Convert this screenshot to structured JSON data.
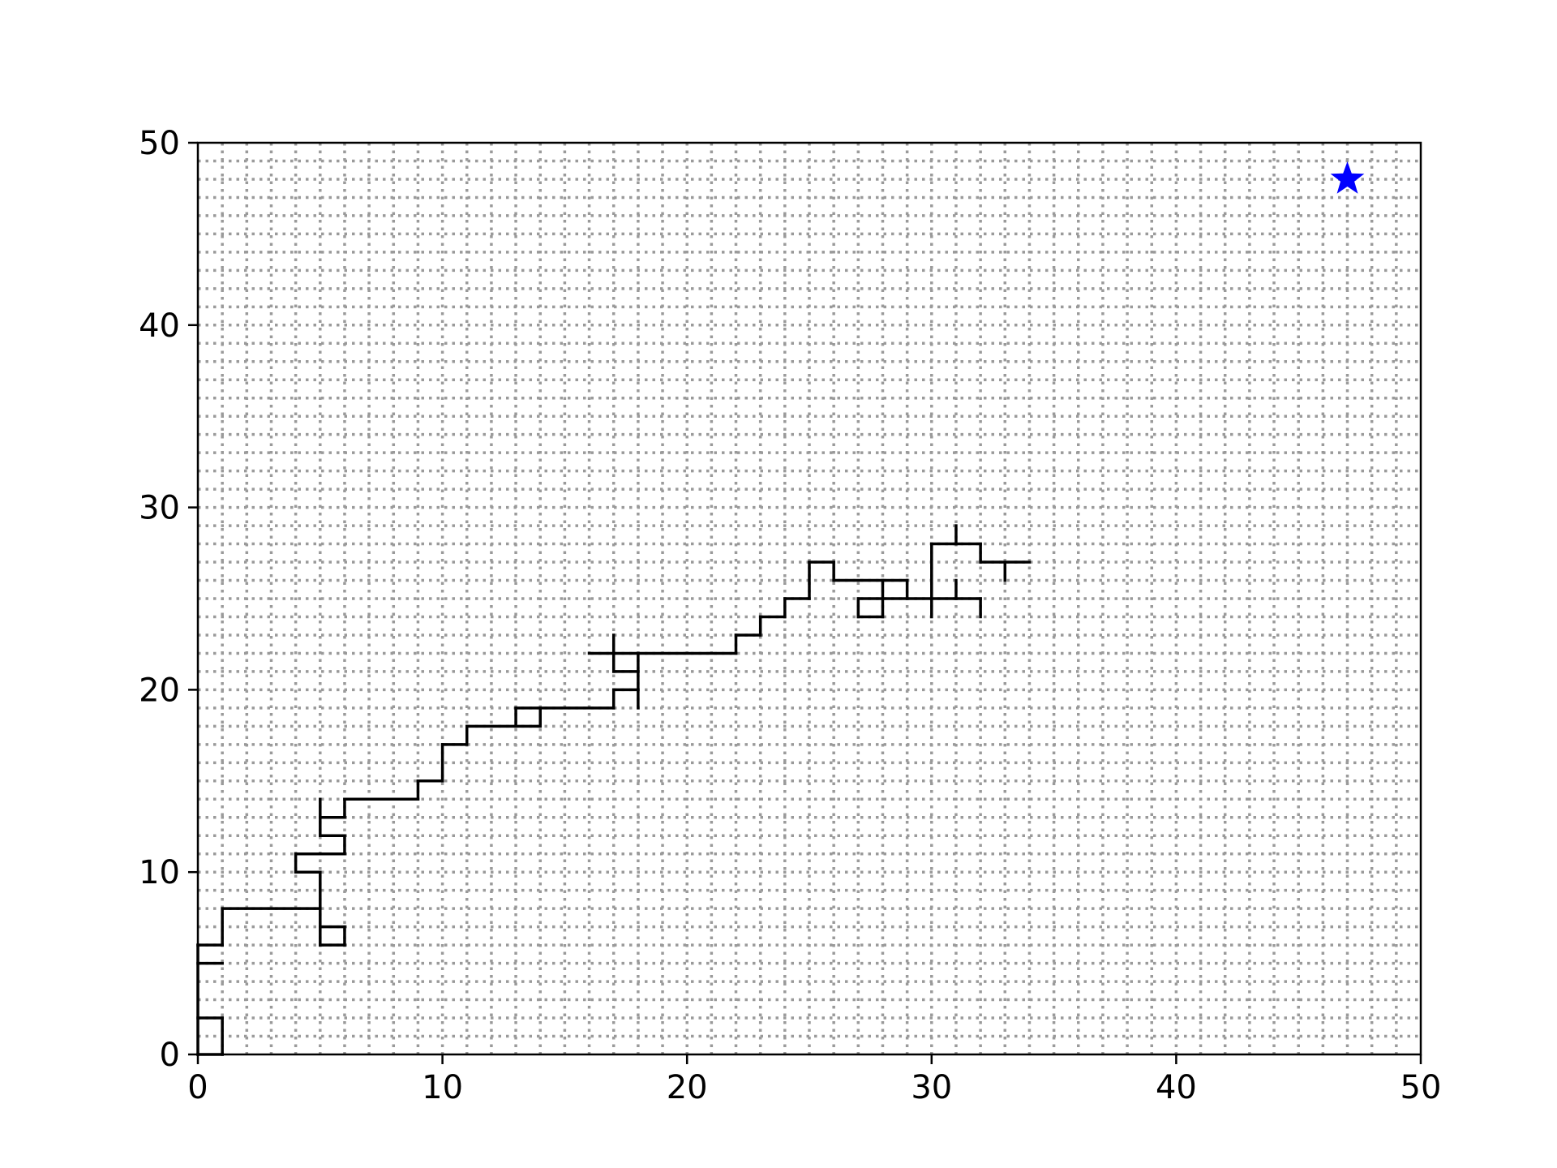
{
  "chart_data": {
    "type": "line",
    "title": "",
    "xlabel": "",
    "ylabel": "",
    "xlim": [
      0,
      50
    ],
    "ylim": [
      0,
      50
    ],
    "x_ticks": [
      "0",
      "10",
      "20",
      "30",
      "40",
      "50"
    ],
    "y_ticks": [
      "0",
      "10",
      "20",
      "30",
      "40",
      "50"
    ],
    "grid": "dotted, every 1 unit",
    "colors": {
      "grid": "#9a9a9a",
      "path": "#000000",
      "marker": "#0000ff",
      "axes": "#000000"
    },
    "segments": [
      [
        [
          0,
          0
        ],
        [
          1,
          0
        ]
      ],
      [
        [
          1,
          0
        ],
        [
          1,
          2
        ]
      ],
      [
        [
          0,
          2
        ],
        [
          1,
          2
        ]
      ],
      [
        [
          0,
          0
        ],
        [
          0,
          6
        ]
      ],
      [
        [
          0,
          5
        ],
        [
          1,
          5
        ]
      ],
      [
        [
          0,
          6
        ],
        [
          1,
          6
        ]
      ],
      [
        [
          1,
          6
        ],
        [
          1,
          8
        ]
      ],
      [
        [
          1,
          8
        ],
        [
          5,
          8
        ]
      ],
      [
        [
          5,
          6
        ],
        [
          5,
          10
        ]
      ],
      [
        [
          5,
          6
        ],
        [
          6,
          6
        ]
      ],
      [
        [
          6,
          6
        ],
        [
          6,
          7
        ]
      ],
      [
        [
          5,
          7
        ],
        [
          6,
          7
        ]
      ],
      [
        [
          4,
          10
        ],
        [
          5,
          10
        ]
      ],
      [
        [
          4,
          10
        ],
        [
          4,
          11
        ]
      ],
      [
        [
          4,
          11
        ],
        [
          6,
          11
        ]
      ],
      [
        [
          6,
          11
        ],
        [
          6,
          12
        ]
      ],
      [
        [
          5,
          12
        ],
        [
          6,
          12
        ]
      ],
      [
        [
          5,
          12
        ],
        [
          5,
          14
        ]
      ],
      [
        [
          5,
          13
        ],
        [
          6,
          13
        ]
      ],
      [
        [
          6,
          13
        ],
        [
          6,
          14
        ]
      ],
      [
        [
          6,
          14
        ],
        [
          9,
          14
        ]
      ],
      [
        [
          9,
          14
        ],
        [
          9,
          15
        ]
      ],
      [
        [
          9,
          15
        ],
        [
          10,
          15
        ]
      ],
      [
        [
          10,
          15
        ],
        [
          10,
          17
        ]
      ],
      [
        [
          10,
          17
        ],
        [
          11,
          17
        ]
      ],
      [
        [
          11,
          17
        ],
        [
          11,
          18
        ]
      ],
      [
        [
          11,
          18
        ],
        [
          13,
          18
        ]
      ],
      [
        [
          13,
          18
        ],
        [
          14,
          18
        ]
      ],
      [
        [
          13,
          18
        ],
        [
          13,
          19
        ]
      ],
      [
        [
          14,
          18
        ],
        [
          14,
          19
        ]
      ],
      [
        [
          13,
          19
        ],
        [
          17,
          19
        ]
      ],
      [
        [
          17,
          19
        ],
        [
          17,
          20
        ]
      ],
      [
        [
          17,
          20
        ],
        [
          18,
          20
        ]
      ],
      [
        [
          18,
          19
        ],
        [
          18,
          22
        ]
      ],
      [
        [
          17,
          21
        ],
        [
          18,
          21
        ]
      ],
      [
        [
          17,
          21
        ],
        [
          17,
          23
        ]
      ],
      [
        [
          16,
          22
        ],
        [
          22,
          22
        ]
      ],
      [
        [
          22,
          22
        ],
        [
          22,
          23
        ]
      ],
      [
        [
          22,
          23
        ],
        [
          23,
          23
        ]
      ],
      [
        [
          23,
          23
        ],
        [
          23,
          24
        ]
      ],
      [
        [
          23,
          24
        ],
        [
          24,
          24
        ]
      ],
      [
        [
          24,
          24
        ],
        [
          24,
          25
        ]
      ],
      [
        [
          24,
          25
        ],
        [
          25,
          25
        ]
      ],
      [
        [
          25,
          25
        ],
        [
          25,
          27
        ]
      ],
      [
        [
          25,
          27
        ],
        [
          26,
          27
        ]
      ],
      [
        [
          26,
          27
        ],
        [
          26,
          26
        ]
      ],
      [
        [
          26,
          26
        ],
        [
          29,
          26
        ]
      ],
      [
        [
          29,
          26
        ],
        [
          29,
          25
        ]
      ],
      [
        [
          28,
          24
        ],
        [
          28,
          26
        ]
      ],
      [
        [
          27,
          24
        ],
        [
          28,
          24
        ]
      ],
      [
        [
          27,
          24
        ],
        [
          27,
          25
        ]
      ],
      [
        [
          27,
          25
        ],
        [
          32,
          25
        ]
      ],
      [
        [
          32,
          25
        ],
        [
          32,
          24
        ]
      ],
      [
        [
          30,
          24
        ],
        [
          30,
          28
        ]
      ],
      [
        [
          31,
          25
        ],
        [
          31,
          26
        ]
      ],
      [
        [
          30,
          28
        ],
        [
          32,
          28
        ]
      ],
      [
        [
          31,
          28
        ],
        [
          31,
          29
        ]
      ],
      [
        [
          32,
          28
        ],
        [
          32,
          27
        ]
      ],
      [
        [
          32,
          27
        ],
        [
          34,
          27
        ]
      ],
      [
        [
          33,
          27
        ],
        [
          33,
          26
        ]
      ]
    ],
    "marker": {
      "shape": "star",
      "x": 47,
      "y": 48
    }
  }
}
